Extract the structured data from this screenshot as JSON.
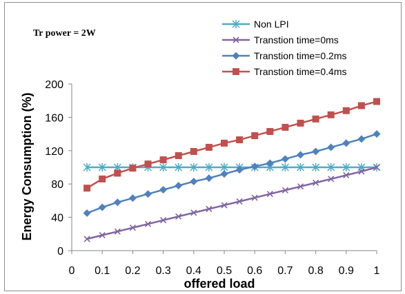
{
  "chart_data": {
    "type": "line",
    "annotation": "Tr power = 2W",
    "xlabel": "offered load",
    "ylabel": "Energy Consumption (%)",
    "xlim": [
      0,
      1
    ],
    "ylim": [
      0,
      200
    ],
    "xticks": [
      "0",
      "0.1",
      "0.2",
      "0.3",
      "0.4",
      "0.5",
      "0.6",
      "0.7",
      "0.8",
      "0.9",
      "1"
    ],
    "yticks": [
      "0",
      "40",
      "80",
      "120",
      "160",
      "200"
    ],
    "grid": false,
    "legend_position": "top-right",
    "x": [
      0.05,
      0.1,
      0.15,
      0.2,
      0.25,
      0.3,
      0.35,
      0.4,
      0.45,
      0.5,
      0.55,
      0.6,
      0.65,
      0.7,
      0.75,
      0.8,
      0.85,
      0.9,
      0.95,
      1.0
    ],
    "series": [
      {
        "name": "Non LPI",
        "color": "#4bacc6",
        "marker": "asterisk",
        "values": [
          100,
          100,
          100,
          100,
          100,
          100,
          100,
          100,
          100,
          100,
          100,
          100,
          100,
          100,
          100,
          100,
          100,
          100,
          100,
          100
        ]
      },
      {
        "name": "Transtion time=0ms",
        "color": "#8064a2",
        "marker": "x",
        "values": [
          14,
          18.5,
          23,
          27.5,
          32,
          36.5,
          41,
          45.5,
          50,
          54.5,
          59,
          63.5,
          68,
          72.5,
          77,
          81.5,
          86,
          90.5,
          95,
          100
        ]
      },
      {
        "name": "Transtion time=0.2ms",
        "color": "#4f81bd",
        "marker": "diamond",
        "values": [
          45,
          52,
          58,
          63,
          68,
          73,
          78,
          83,
          87,
          92,
          97,
          101,
          105,
          110,
          115,
          119,
          124,
          129,
          134,
          140
        ]
      },
      {
        "name": "Transtion time=0.4ms",
        "color": "#c0504d",
        "marker": "square",
        "values": [
          75,
          86,
          93,
          99,
          104,
          109,
          114,
          119,
          124,
          129,
          133,
          138,
          143,
          148,
          153,
          158,
          163,
          168,
          174,
          179
        ]
      }
    ]
  }
}
